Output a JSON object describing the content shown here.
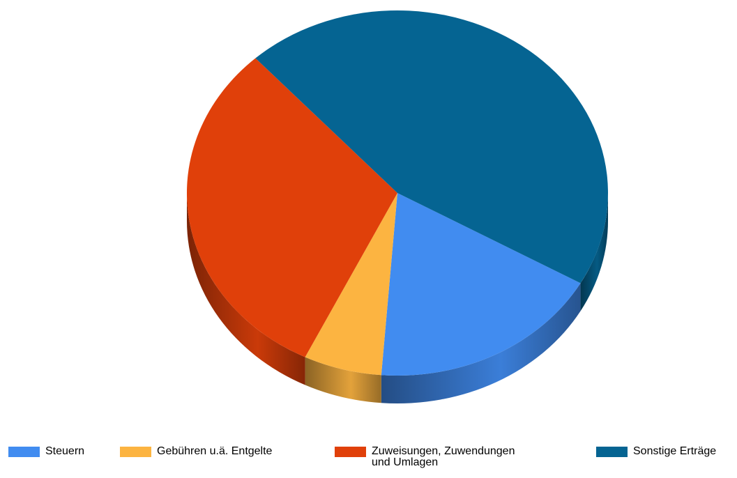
{
  "chart_data": {
    "type": "pie",
    "categories": [
      "Steuern",
      "Gebühren u.ä. Entgelte",
      "Zuweisungen, Zuwendungen und Umlagen",
      "Sonstige Erträge"
    ],
    "values": [
      18,
      6,
      31,
      45
    ],
    "colors": [
      "#418cf0",
      "#fcb441",
      "#e0400a",
      "#056492"
    ]
  }
}
